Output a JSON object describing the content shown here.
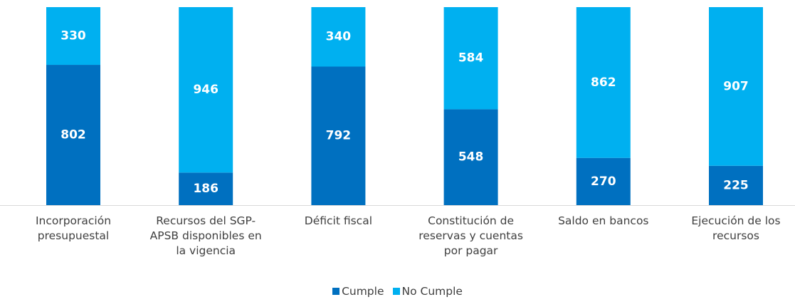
{
  "chart_data": {
    "type": "stacked_bar",
    "categories": [
      "Incorporación presupuestal",
      "Recursos del SGP-APSB disponibles en la vigencia",
      "Déficit fiscal",
      "Constitución de reservas y cuentas por pagar",
      "Saldo en bancos",
      "Ejecución de los recursos"
    ],
    "series": [
      {
        "name": "Cumple",
        "color": "#0070c0",
        "values": [
          802,
          186,
          792,
          548,
          270,
          225
        ]
      },
      {
        "name": "No Cumple",
        "color": "#00b0f0",
        "values": [
          330,
          946,
          340,
          584,
          862,
          907
        ]
      }
    ],
    "legend": "bottom"
  }
}
